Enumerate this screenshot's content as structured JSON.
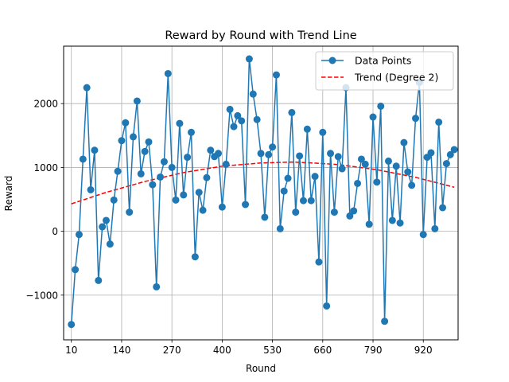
{
  "chart_data": {
    "type": "line",
    "title": "Reward by Round with Trend Line",
    "xlabel": "Round",
    "ylabel": "Reward",
    "xlim": [
      -10,
      1010
    ],
    "ylim": [
      -1700,
      2900
    ],
    "xticks": [
      10,
      140,
      270,
      400,
      530,
      660,
      790,
      920
    ],
    "yticks": [
      -1000,
      0,
      1000,
      2000
    ],
    "grid": true,
    "legend_position": "top-right",
    "series": [
      {
        "name": "Data Points",
        "style": "line-with-markers",
        "color": "#1f77b4",
        "x": [
          10,
          20,
          30,
          40,
          50,
          60,
          70,
          80,
          90,
          100,
          110,
          120,
          130,
          140,
          150,
          160,
          170,
          180,
          190,
          200,
          210,
          220,
          230,
          240,
          250,
          260,
          270,
          280,
          290,
          300,
          310,
          320,
          330,
          340,
          350,
          360,
          370,
          380,
          390,
          400,
          410,
          420,
          430,
          440,
          450,
          460,
          470,
          480,
          490,
          500,
          510,
          520,
          530,
          540,
          550,
          560,
          570,
          580,
          590,
          600,
          610,
          620,
          630,
          640,
          650,
          660,
          670,
          680,
          690,
          700,
          710,
          720,
          730,
          740,
          750,
          760,
          770,
          780,
          790,
          800,
          810,
          820,
          830,
          840,
          850,
          860,
          870,
          880,
          890,
          900,
          910,
          920,
          930,
          940,
          950,
          960,
          970,
          980,
          990,
          1000
        ],
        "y": [
          -1460,
          -600,
          -50,
          1130,
          2250,
          650,
          1270,
          -770,
          70,
          170,
          -200,
          490,
          940,
          1420,
          1700,
          300,
          1480,
          2040,
          900,
          1250,
          1400,
          730,
          -870,
          850,
          1090,
          2470,
          1000,
          490,
          1690,
          570,
          1160,
          1550,
          -400,
          610,
          330,
          840,
          1270,
          1170,
          1220,
          380,
          1050,
          1910,
          1640,
          1810,
          1730,
          420,
          2700,
          2150,
          1750,
          1220,
          220,
          1200,
          1320,
          2450,
          40,
          630,
          830,
          1860,
          300,
          1180,
          480,
          1600,
          480,
          860,
          -480,
          1550,
          -1170,
          1220,
          300,
          1170,
          980,
          2250,
          240,
          320,
          750,
          1130,
          1050,
          110,
          1790,
          770,
          1960,
          -1410,
          1100,
          170,
          1020,
          130,
          1390,
          930,
          720,
          1770,
          2330,
          -50,
          1160,
          1230,
          40,
          1710,
          370,
          1060,
          1200,
          1280
        ]
      },
      {
        "name": "Trend (Degree 2)",
        "style": "dashed-line",
        "color": "#ff0000",
        "fit_degree": 2,
        "x": [
          10,
          100,
          200,
          300,
          400,
          500,
          580,
          650,
          700,
          800,
          900,
          1000
        ],
        "y": [
          430,
          610,
          780,
          920,
          1020,
          1070,
          1085,
          1065,
          1045,
          965,
          845,
          690
        ]
      }
    ]
  }
}
